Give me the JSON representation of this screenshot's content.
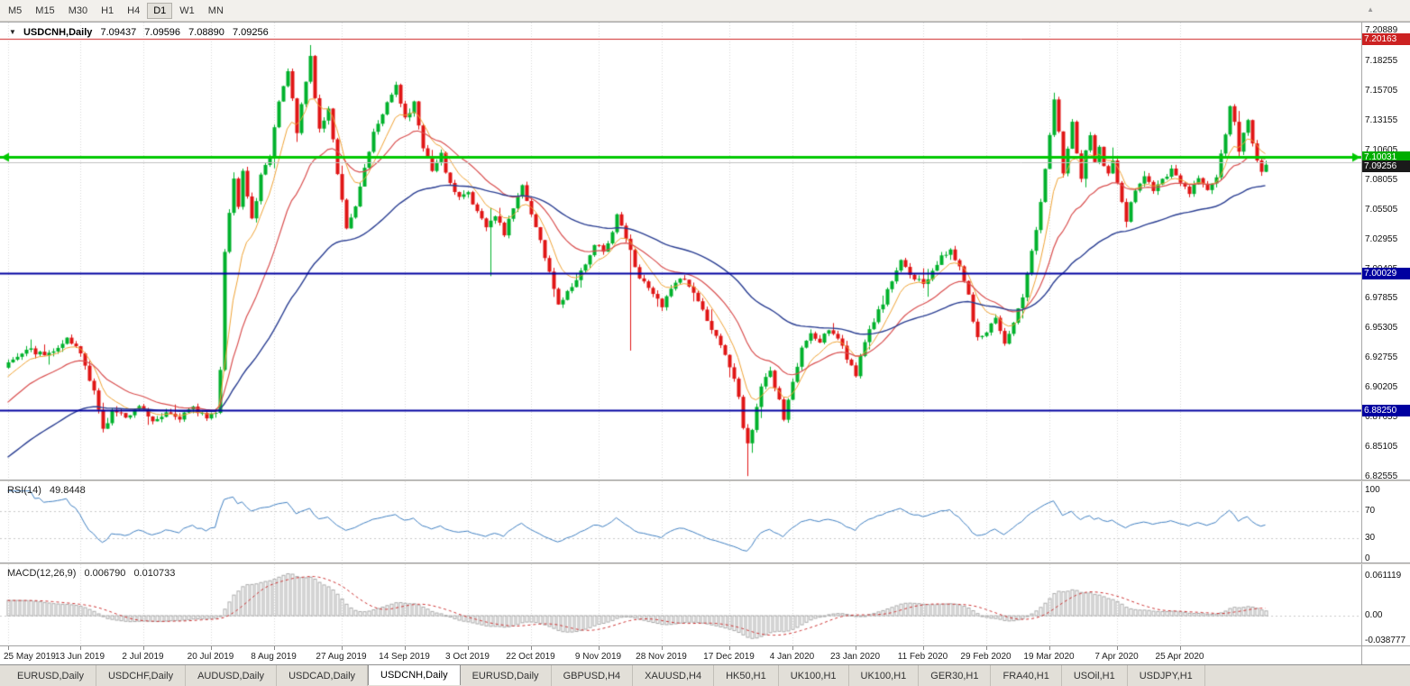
{
  "icons": {
    "chart_menu": "▼",
    "toolbar_overflow": "▲"
  },
  "colors": {
    "bull": "#00b22c",
    "bear": "#e01515",
    "grid": "#d6d6d6",
    "rsi_line": "#3f7fc1",
    "macd_bar": "#aaaaaa",
    "macd_signal": "#cc3333",
    "background": "#ffffff"
  },
  "toolbar": {
    "timeframes": [
      {
        "label": "M5",
        "active": false
      },
      {
        "label": "M15",
        "active": false
      },
      {
        "label": "M30",
        "active": false
      },
      {
        "label": "H1",
        "active": false
      },
      {
        "label": "H4",
        "active": false
      },
      {
        "label": "D1",
        "active": true
      },
      {
        "label": "W1",
        "active": false
      },
      {
        "label": "MN",
        "active": false
      }
    ]
  },
  "chart": {
    "header": {
      "symbol": "USDCNH,Daily",
      "open": "7.09437",
      "high": "7.09596",
      "low": "7.08890",
      "close": "7.09256"
    },
    "price_axis_labels": [
      "7.20889",
      "7.18255",
      "7.15705",
      "7.13155",
      "7.10605",
      "7.08055",
      "7.05505",
      "7.02955",
      "7.00405",
      "6.97855",
      "6.95305",
      "6.92755",
      "6.90205",
      "6.87655",
      "6.85105",
      "6.82555"
    ],
    "badges": [
      {
        "text": "7.20163",
        "price": 7.20163,
        "color": "#cc2222"
      },
      {
        "text": "7.10031",
        "price": 7.10031,
        "color": "#00ad00"
      },
      {
        "text": "7.09256",
        "price": 7.09256,
        "color": "#1a1a1a"
      },
      {
        "text": "7.00029",
        "price": 7.00029,
        "color": "#0000a0"
      },
      {
        "text": "6.88250",
        "price": 6.8825,
        "color": "#0000a0"
      }
    ]
  },
  "rsi_panel": {
    "title": "RSI(14)",
    "value": "49.8448",
    "axis_labels": [
      {
        "text": "100",
        "value": 100
      },
      {
        "text": "70",
        "value": 70
      },
      {
        "text": "30",
        "value": 30
      },
      {
        "text": "0",
        "value": 0
      }
    ]
  },
  "macd_panel": {
    "title": "MACD(12,26,9)",
    "value_macd": "0.006790",
    "value_signal": "0.010733",
    "axis_labels": [
      {
        "text": "0.061119",
        "value": 0.061119
      },
      {
        "text": "0.00",
        "value": 0
      },
      {
        "text": "-0.038777",
        "value": -0.038777
      }
    ]
  },
  "tabs": [
    {
      "label": "EURUSD,Daily",
      "active": false
    },
    {
      "label": "USDCHF,Daily",
      "active": false
    },
    {
      "label": "AUDUSD,Daily",
      "active": false
    },
    {
      "label": "USDCAD,Daily",
      "active": false
    },
    {
      "label": "USDCNH,Daily",
      "active": true
    },
    {
      "label": "EURUSD,Daily",
      "active": false
    },
    {
      "label": "GBPUSD,H4",
      "active": false
    },
    {
      "label": "XAUUSD,H4",
      "active": false
    },
    {
      "label": "HK50,H1",
      "active": false
    },
    {
      "label": "UK100,H1",
      "active": false
    },
    {
      "label": "UK100,H1",
      "active": false
    },
    {
      "label": "GER30,H1",
      "active": false
    },
    {
      "label": "FRA40,H1",
      "active": false
    },
    {
      "label": "USOil,H1",
      "active": false
    },
    {
      "label": "USDJPY,H1",
      "active": false
    }
  ],
  "chart_data": {
    "type": "candlestick",
    "symbol": "USDCNH",
    "timeframe": "Daily",
    "title": "USDCNH,Daily",
    "current_ohlc": {
      "open": 7.09437,
      "high": 7.09596,
      "low": 7.0889,
      "close": 7.09256
    },
    "y_range": [
      6.82555,
      7.20889
    ],
    "candle_count": 280,
    "date_ticks": [
      {
        "text": "25 May 2019",
        "index": 0
      },
      {
        "text": "13 Jun 2019",
        "index": 16
      },
      {
        "text": "2 Jul 2019",
        "index": 30
      },
      {
        "text": "20 Jul 2019",
        "index": 45
      },
      {
        "text": "8 Aug 2019",
        "index": 59
      },
      {
        "text": "27 Aug 2019",
        "index": 74
      },
      {
        "text": "14 Sep 2019",
        "index": 88
      },
      {
        "text": "3 Oct 2019",
        "index": 102
      },
      {
        "text": "22 Oct 2019",
        "index": 116
      },
      {
        "text": "9 Nov 2019",
        "index": 131
      },
      {
        "text": "28 Nov 2019",
        "index": 145
      },
      {
        "text": "17 Dec 2019",
        "index": 160
      },
      {
        "text": "4 Jan 2020",
        "index": 174
      },
      {
        "text": "23 Jan 2020",
        "index": 188
      },
      {
        "text": "11 Feb 2020",
        "index": 203
      },
      {
        "text": "29 Feb 2020",
        "index": 217
      },
      {
        "text": "19 Mar 2020",
        "index": 231
      },
      {
        "text": "7 Apr 2020",
        "index": 246
      },
      {
        "text": "25 Apr 2020",
        "index": 260
      }
    ],
    "close_anchors": [
      [
        0,
        6.925
      ],
      [
        4,
        6.936
      ],
      [
        8,
        6.93
      ],
      [
        13,
        6.944
      ],
      [
        16,
        6.932
      ],
      [
        19,
        6.898
      ],
      [
        21,
        6.866
      ],
      [
        23,
        6.882
      ],
      [
        26,
        6.877
      ],
      [
        29,
        6.888
      ],
      [
        32,
        6.874
      ],
      [
        35,
        6.882
      ],
      [
        38,
        6.877
      ],
      [
        41,
        6.884
      ],
      [
        44,
        6.878
      ],
      [
        46,
        6.882
      ],
      [
        47,
        6.915
      ],
      [
        48,
        7.02
      ],
      [
        49,
        7.052
      ],
      [
        50,
        7.084
      ],
      [
        51,
        7.058
      ],
      [
        52,
        7.09
      ],
      [
        53,
        7.066
      ],
      [
        54,
        7.046
      ],
      [
        55,
        7.06
      ],
      [
        56,
        7.084
      ],
      [
        58,
        7.102
      ],
      [
        60,
        7.148
      ],
      [
        62,
        7.176
      ],
      [
        63,
        7.152
      ],
      [
        64,
        7.12
      ],
      [
        65,
        7.146
      ],
      [
        66,
        7.166
      ],
      [
        67,
        7.186
      ],
      [
        68,
        7.152
      ],
      [
        69,
        7.126
      ],
      [
        71,
        7.142
      ],
      [
        72,
        7.118
      ],
      [
        73,
        7.084
      ],
      [
        75,
        7.04
      ],
      [
        77,
        7.058
      ],
      [
        79,
        7.092
      ],
      [
        81,
        7.122
      ],
      [
        84,
        7.148
      ],
      [
        86,
        7.163
      ],
      [
        88,
        7.132
      ],
      [
        90,
        7.146
      ],
      [
        92,
        7.11
      ],
      [
        94,
        7.088
      ],
      [
        96,
        7.102
      ],
      [
        98,
        7.076
      ],
      [
        100,
        7.066
      ],
      [
        102,
        7.07
      ],
      [
        104,
        7.053
      ],
      [
        106,
        7.04
      ],
      [
        108,
        7.05
      ],
      [
        110,
        7.034
      ],
      [
        112,
        7.058
      ],
      [
        114,
        7.076
      ],
      [
        116,
        7.052
      ],
      [
        118,
        7.028
      ],
      [
        120,
        7.002
      ],
      [
        122,
        6.972
      ],
      [
        124,
        6.986
      ],
      [
        126,
        6.996
      ],
      [
        128,
        7.01
      ],
      [
        130,
        7.026
      ],
      [
        132,
        7.02
      ],
      [
        134,
        7.036
      ],
      [
        135,
        7.05
      ],
      [
        137,
        7.032
      ],
      [
        139,
        7.005
      ],
      [
        141,
        6.992
      ],
      [
        143,
        6.982
      ],
      [
        145,
        6.972
      ],
      [
        147,
        6.986
      ],
      [
        149,
        6.998
      ],
      [
        151,
        6.99
      ],
      [
        153,
        6.976
      ],
      [
        155,
        6.96
      ],
      [
        157,
        6.945
      ],
      [
        159,
        6.928
      ],
      [
        161,
        6.912
      ],
      [
        162,
        6.894
      ],
      [
        163,
        6.87
      ],
      [
        164,
        6.856
      ],
      [
        165,
        6.866
      ],
      [
        166,
        6.884
      ],
      [
        167,
        6.902
      ],
      [
        169,
        6.916
      ],
      [
        171,
        6.89
      ],
      [
        172,
        6.876
      ],
      [
        174,
        6.906
      ],
      [
        176,
        6.936
      ],
      [
        178,
        6.948
      ],
      [
        180,
        6.94
      ],
      [
        182,
        6.953
      ],
      [
        184,
        6.946
      ],
      [
        186,
        6.928
      ],
      [
        188,
        6.914
      ],
      [
        190,
        6.94
      ],
      [
        192,
        6.96
      ],
      [
        194,
        6.976
      ],
      [
        196,
        6.993
      ],
      [
        198,
        7.01
      ],
      [
        200,
        7.0
      ],
      [
        203,
        6.99
      ],
      [
        205,
        7.003
      ],
      [
        207,
        7.016
      ],
      [
        209,
        7.02
      ],
      [
        211,
        7.006
      ],
      [
        213,
        6.984
      ],
      [
        214,
        6.96
      ],
      [
        215,
        6.944
      ],
      [
        217,
        6.95
      ],
      [
        219,
        6.96
      ],
      [
        221,
        6.94
      ],
      [
        223,
        6.956
      ],
      [
        225,
        6.982
      ],
      [
        227,
        7.02
      ],
      [
        229,
        7.06
      ],
      [
        230,
        7.092
      ],
      [
        231,
        7.118
      ],
      [
        232,
        7.152
      ],
      [
        233,
        7.122
      ],
      [
        234,
        7.086
      ],
      [
        235,
        7.108
      ],
      [
        236,
        7.13
      ],
      [
        237,
        7.103
      ],
      [
        238,
        7.08
      ],
      [
        239,
        7.106
      ],
      [
        240,
        7.12
      ],
      [
        241,
        7.096
      ],
      [
        242,
        7.11
      ],
      [
        243,
        7.093
      ],
      [
        244,
        7.086
      ],
      [
        245,
        7.096
      ],
      [
        246,
        7.08
      ],
      [
        247,
        7.06
      ],
      [
        248,
        7.046
      ],
      [
        249,
        7.06
      ],
      [
        250,
        7.073
      ],
      [
        252,
        7.086
      ],
      [
        254,
        7.07
      ],
      [
        256,
        7.08
      ],
      [
        258,
        7.09
      ],
      [
        260,
        7.078
      ],
      [
        262,
        7.07
      ],
      [
        264,
        7.08
      ],
      [
        266,
        7.073
      ],
      [
        268,
        7.084
      ],
      [
        270,
        7.122
      ],
      [
        271,
        7.146
      ],
      [
        272,
        7.13
      ],
      [
        273,
        7.106
      ],
      [
        274,
        7.12
      ],
      [
        275,
        7.133
      ],
      [
        276,
        7.11
      ],
      [
        277,
        7.096
      ],
      [
        278,
        7.086
      ],
      [
        279,
        7.0926
      ]
    ],
    "wick_overrides": [
      [
        67,
        7.1965,
        null
      ],
      [
        107,
        null,
        6.998
      ],
      [
        138,
        null,
        6.934
      ],
      [
        164,
        null,
        6.8262
      ]
    ],
    "horizontal_lines": [
      {
        "price": 7.20163,
        "color": "#cc2222",
        "width": 1,
        "arrows": false
      },
      {
        "price": 7.0958,
        "color": "#c0c0c0",
        "width": 1,
        "arrows": false
      },
      {
        "price": 7.00029,
        "color": "#0000a0",
        "width": 2,
        "arrows": false
      },
      {
        "price": 6.8825,
        "color": "#0000a0",
        "width": 2,
        "arrows": false
      },
      {
        "price": 7.10031,
        "color": "#00c800",
        "width": 3,
        "arrows": true
      }
    ],
    "moving_averages": [
      {
        "period": 8,
        "color": "#efa234"
      },
      {
        "period": 21,
        "color": "#d94f4f"
      },
      {
        "period": 55,
        "color": "#2a3e92"
      }
    ],
    "indicators": {
      "rsi": {
        "period": 14,
        "current": 49.8448,
        "levels": [
          70,
          30
        ]
      },
      "macd": {
        "fast": 12,
        "slow": 26,
        "signal": 9,
        "current_macd": 0.00679,
        "current_signal": 0.010733,
        "axis_range": [
          -0.038777,
          0.061119
        ]
      }
    }
  }
}
